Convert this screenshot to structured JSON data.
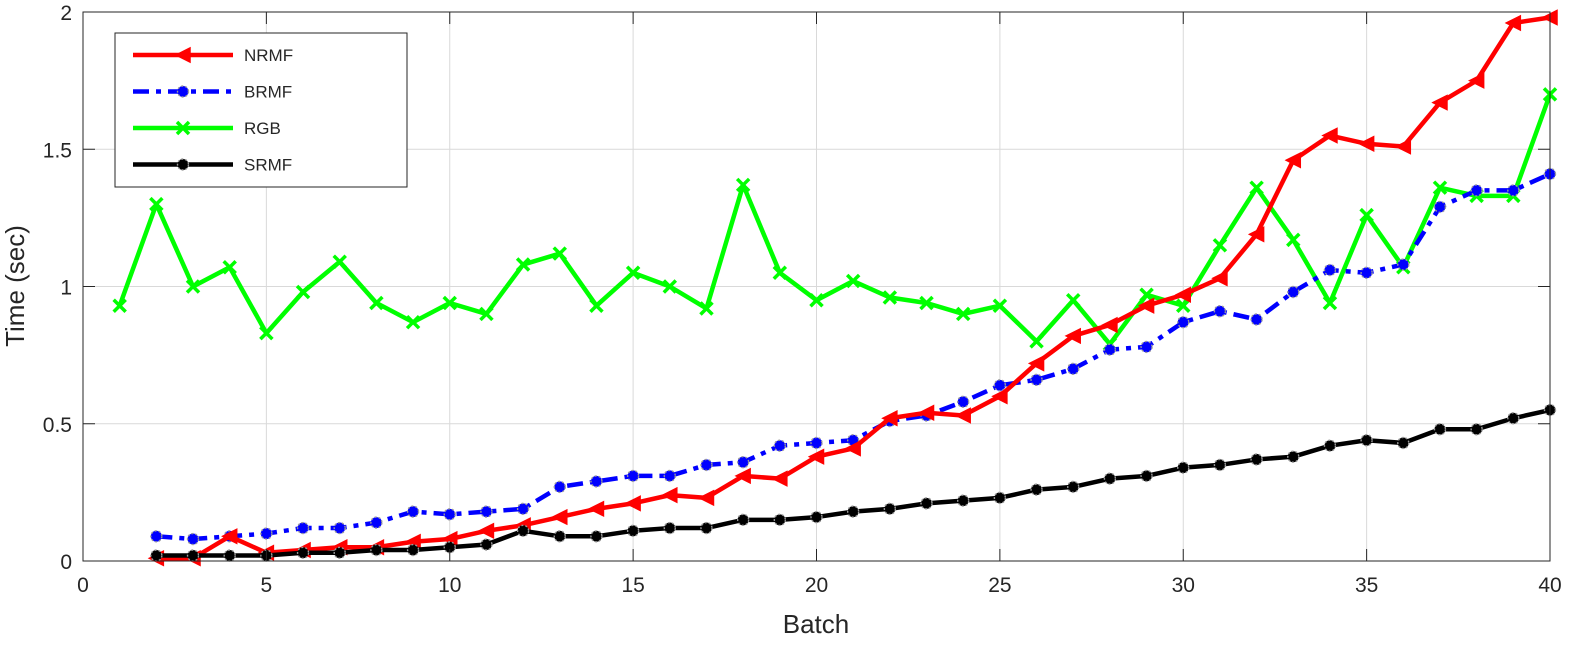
{
  "chart_data": {
    "type": "line",
    "title": "",
    "xlabel": "Batch",
    "ylabel": "Time (sec)",
    "xlim": [
      0,
      40
    ],
    "ylim": [
      0,
      2
    ],
    "xticks": [
      0,
      5,
      10,
      15,
      20,
      25,
      30,
      35,
      40
    ],
    "yticks": [
      0,
      0.5,
      1,
      1.5,
      2
    ],
    "xtick_labels": [
      "0",
      "5",
      "10",
      "15",
      "20",
      "25",
      "30",
      "35",
      "40"
    ],
    "ytick_labels": [
      "0",
      "0.5",
      "1",
      "1.5",
      "2"
    ],
    "grid": true,
    "legend_position": "top-left",
    "series": [
      {
        "name": "NRMF",
        "color": "#ff0000",
        "marker": "left-triangle",
        "line_style": "solid",
        "x": [
          2,
          3,
          4,
          5,
          6,
          7,
          8,
          9,
          10,
          11,
          12,
          13,
          14,
          15,
          16,
          17,
          18,
          19,
          20,
          21,
          22,
          23,
          24,
          25,
          26,
          27,
          28,
          29,
          30,
          31,
          32,
          33,
          34,
          35,
          36,
          37,
          38,
          39,
          40
        ],
        "values": [
          0.01,
          0.01,
          0.09,
          0.03,
          0.04,
          0.05,
          0.05,
          0.07,
          0.08,
          0.11,
          0.13,
          0.16,
          0.19,
          0.21,
          0.24,
          0.23,
          0.31,
          0.3,
          0.38,
          0.41,
          0.52,
          0.54,
          0.53,
          0.6,
          0.72,
          0.82,
          0.86,
          0.93,
          0.97,
          1.03,
          1.19,
          1.46,
          1.55,
          1.52,
          1.51,
          1.67,
          1.75,
          1.96,
          1.98
        ]
      },
      {
        "name": "BRMF",
        "color": "#0000ff",
        "marker": "circle",
        "line_style": "dash-dot",
        "x": [
          2,
          3,
          4,
          5,
          6,
          7,
          8,
          9,
          10,
          11,
          12,
          13,
          14,
          15,
          16,
          17,
          18,
          19,
          20,
          21,
          22,
          23,
          24,
          25,
          26,
          27,
          28,
          29,
          30,
          31,
          32,
          33,
          34,
          35,
          36,
          37,
          38,
          39,
          40
        ],
        "values": [
          0.09,
          0.08,
          0.09,
          0.1,
          0.12,
          0.12,
          0.14,
          0.18,
          0.17,
          0.18,
          0.19,
          0.27,
          0.29,
          0.31,
          0.31,
          0.35,
          0.36,
          0.42,
          0.43,
          0.44,
          0.51,
          0.53,
          0.58,
          0.64,
          0.66,
          0.7,
          0.77,
          0.78,
          0.87,
          0.91,
          0.88,
          0.98,
          1.06,
          1.05,
          1.08,
          1.29,
          1.35,
          1.35,
          1.41
        ]
      },
      {
        "name": "RGB",
        "color": "#00ff00",
        "marker": "x",
        "line_style": "solid",
        "x": [
          1,
          2,
          3,
          4,
          5,
          6,
          7,
          8,
          9,
          10,
          11,
          12,
          13,
          14,
          15,
          16,
          17,
          18,
          19,
          20,
          21,
          22,
          23,
          24,
          25,
          26,
          27,
          28,
          29,
          30,
          31,
          32,
          33,
          34,
          35,
          36,
          37,
          38,
          39,
          40
        ],
        "values": [
          0.93,
          1.3,
          1.0,
          1.07,
          0.83,
          0.98,
          1.09,
          0.94,
          0.87,
          0.94,
          0.9,
          1.08,
          1.12,
          0.93,
          1.05,
          1.0,
          0.92,
          1.37,
          1.05,
          0.95,
          1.02,
          0.96,
          0.94,
          0.9,
          0.93,
          0.8,
          0.95,
          0.79,
          0.97,
          0.93,
          1.15,
          1.36,
          1.17,
          0.94,
          1.26,
          1.07,
          1.36,
          1.33,
          1.33,
          1.7
        ]
      },
      {
        "name": "SRMF",
        "color": "#000000",
        "marker": "circle",
        "line_style": "solid",
        "x": [
          2,
          3,
          4,
          5,
          6,
          7,
          8,
          9,
          10,
          11,
          12,
          13,
          14,
          15,
          16,
          17,
          18,
          19,
          20,
          21,
          22,
          23,
          24,
          25,
          26,
          27,
          28,
          29,
          30,
          31,
          32,
          33,
          34,
          35,
          36,
          37,
          38,
          39,
          40
        ],
        "values": [
          0.02,
          0.02,
          0.02,
          0.02,
          0.03,
          0.03,
          0.04,
          0.04,
          0.05,
          0.06,
          0.11,
          0.09,
          0.09,
          0.11,
          0.12,
          0.12,
          0.15,
          0.15,
          0.16,
          0.18,
          0.19,
          0.21,
          0.22,
          0.23,
          0.26,
          0.27,
          0.3,
          0.31,
          0.34,
          0.35,
          0.37,
          0.38,
          0.42,
          0.44,
          0.43,
          0.48,
          0.48,
          0.52,
          0.55
        ]
      }
    ]
  }
}
